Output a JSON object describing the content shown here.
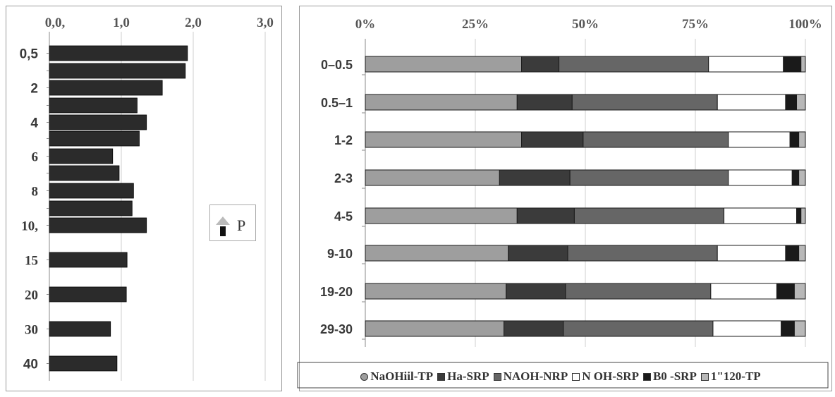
{
  "chart_data": [
    {
      "type": "bar",
      "orientation": "horizontal",
      "title": "",
      "xlabel": "",
      "ylabel": "",
      "xlim": [
        0,
        3
      ],
      "x_ticks": [
        "0,0,",
        "1,0",
        "2,0",
        "3,0"
      ],
      "grid": "vertical",
      "categories": [
        "0,5",
        "",
        "2",
        "",
        "4",
        "",
        "6",
        "",
        "8",
        "",
        "10,",
        "15",
        "20",
        "30",
        "40"
      ],
      "values": [
        1.92,
        1.89,
        1.57,
        1.22,
        1.35,
        1.25,
        0.88,
        0.97,
        1.17,
        1.15,
        1.35,
        1.08,
        1.07,
        0.85,
        0.94
      ],
      "bar_color": "#2b2b2b"
    },
    {
      "type": "bar",
      "orientation": "horizontal",
      "stacked": true,
      "percent": true,
      "title": "",
      "xlim": [
        0,
        100
      ],
      "x_ticks": [
        "0%",
        "25%",
        "50%",
        "75%",
        "100%"
      ],
      "grid": "vertical",
      "categories": [
        "0–0.5",
        "0.5–1",
        "1-2",
        "2-3",
        "4-5",
        "9-10",
        "19-20",
        "29-30"
      ],
      "series": [
        {
          "name": "NaOHiil-TP",
          "color": "#9e9e9e",
          "values": [
            35.5,
            34.5,
            35.5,
            30.5,
            34.5,
            32.5,
            32,
            31.5
          ]
        },
        {
          "name": "Ha-SRP",
          "color": "#3b3b3b",
          "values": [
            8.5,
            12.5,
            14,
            16,
            13,
            13.5,
            13.5,
            13.5
          ]
        },
        {
          "name": "NAOH-NRP",
          "color": "#666666",
          "values": [
            34,
            33,
            33,
            36,
            34,
            34,
            33,
            34
          ]
        },
        {
          "name": "N OH-SRP",
          "color": "#ffffff",
          "values": [
            17,
            15.5,
            14,
            14.5,
            16.5,
            15.5,
            15,
            15.5
          ]
        },
        {
          "name": "B0 -SRP",
          "color": "#1a1a1a",
          "values": [
            4,
            2.5,
            2,
            1.5,
            1,
            3,
            4,
            3
          ]
        },
        {
          "name": "1\"120-TP",
          "color": "#b8b8b8",
          "values": [
            1,
            2,
            1.5,
            1.5,
            1,
            1.5,
            2.5,
            2.5
          ]
        }
      ]
    }
  ],
  "legend": {
    "items": [
      {
        "glyph": "●",
        "label": "NaOHiil-TP",
        "color": "#9e9e9e"
      },
      {
        "glyph": "■",
        "label": "Ha-SRP",
        "color": "#3b3b3b"
      },
      {
        "glyph": "■",
        "label": "NAOH-NRP",
        "color": "#666666"
      },
      {
        "glyph": "□",
        "label": "N OH-SRP",
        "color": "#ffffff"
      },
      {
        "glyph": "■",
        "label": "B0 -SRP",
        "color": "#1a1a1a"
      },
      {
        "glyph": "■",
        "label": "1\"120-TP",
        "color": "#b8b8b8"
      }
    ]
  },
  "inset": {
    "glyph": "P"
  }
}
